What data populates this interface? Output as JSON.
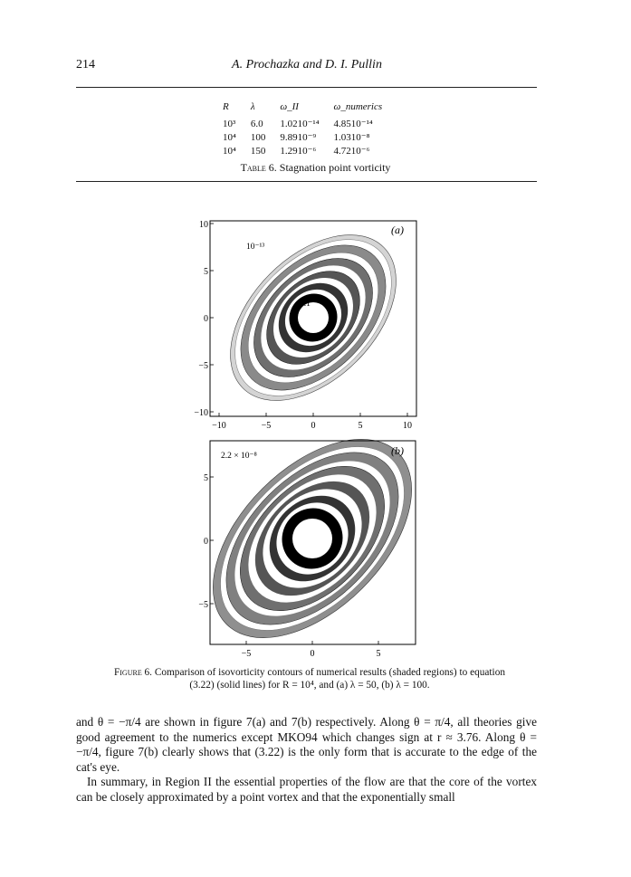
{
  "header": {
    "page_number": "214",
    "running_head": "A. Prochazka and D. I. Pullin"
  },
  "table": {
    "headers": [
      "R",
      "λ",
      "ω_II",
      "ω_numerics"
    ],
    "rows": [
      [
        "10³",
        "6.0",
        "1.0210⁻¹⁴",
        "4.8510⁻¹⁴"
      ],
      [
        "10⁴",
        "100",
        "9.8910⁻⁹",
        "1.0310⁻⁸"
      ],
      [
        "10⁴",
        "150",
        "1.2910⁻⁶",
        "4.7210⁻⁶"
      ]
    ],
    "caption_label": "Table 6.",
    "caption_text": " Stagnation point vorticity"
  },
  "figures": {
    "a": {
      "panel_label": "(a)",
      "contour_outer_label": "10⁻¹³",
      "contour_inner_label": "0.1",
      "xticks": [
        "−10",
        "−5",
        "0",
        "5",
        "10"
      ],
      "yticks": [
        "10",
        "5",
        "0",
        "−5",
        "−10"
      ]
    },
    "b": {
      "panel_label": "(b)",
      "contour_outer_label": "2.2 × 10⁻⁸",
      "contour_inner_label": "0.1",
      "xticks": [
        "−5",
        "0",
        "5"
      ],
      "yticks": [
        "5",
        "0",
        "−5"
      ]
    }
  },
  "figure_caption": {
    "label": "Figure 6.",
    "text": " Comparison of isovorticity contours of numerical results (shaded regions) to equation (3.22) (solid lines) for R = 10⁴, and (a) λ = 50, (b) λ = 100."
  },
  "body": {
    "paragraph1": "and θ = −π/4 are shown in figure 7(a) and 7(b) respectively. Along θ = π/4, all theories give good agreement to the numerics except MKO94 which changes sign at r ≈ 3.76. Along θ = −π/4, figure 7(b) clearly shows that (3.22) is the only form that is accurate to the edge of the cat's eye.",
    "paragraph2": "In summary, in Region II the essential properties of the flow are that the core of the vortex can be closely approximated by a point vortex and that the exponentially small"
  }
}
